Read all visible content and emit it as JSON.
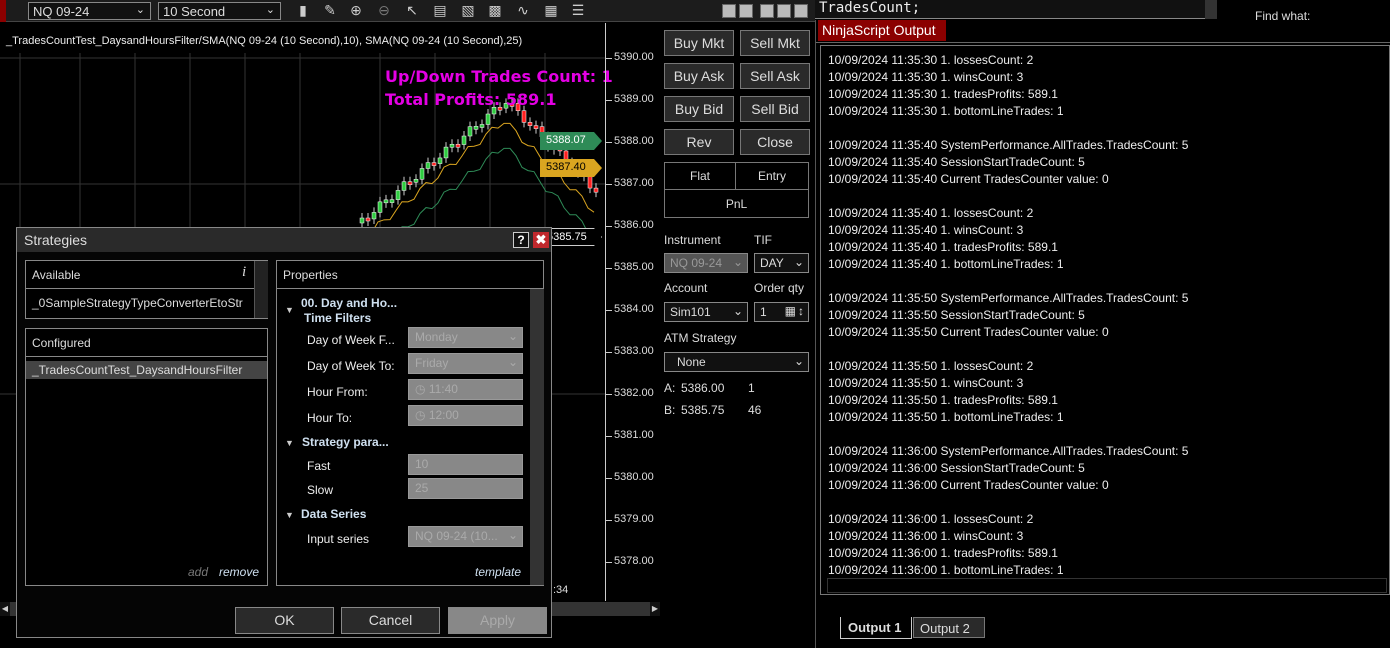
{
  "toolbar": {
    "instrument": "NQ 09-24",
    "interval": "10 Second",
    "icons": [
      "bars-type-icon",
      "pencil-icon",
      "zoom-in-icon",
      "zoom-out-icon",
      "pointer-icon",
      "data-box-icon",
      "properties-icon",
      "indicators-icon",
      "strategies-icon",
      "templates-icon",
      "menu-list-icon"
    ]
  },
  "chart": {
    "title": "_TradesCountTest_DaysandHoursFilter/SMA(NQ 09-24 (10 Second),10), SMA(NQ 09-24 (10 Second),25)",
    "overlay_line1": "Up/Down Trades Count: 1",
    "overlay_line2": "Total Profits: 589.1",
    "price_labels": [
      "5390.00",
      "5389.00",
      "5388.00",
      "5387.00",
      "5386.00",
      "5385.00",
      "5384.00",
      "5383.00",
      "5382.00",
      "5381.00",
      "5380.00",
      "5379.00",
      "5378.00"
    ],
    "sma_slow_tag": "5388.07",
    "sma_fast_tag": "5387.40",
    "last_price_tag": "5385.75",
    "time_label": ":34",
    "colors": {
      "overlay": "#e400e4",
      "sma_slow": "#2e8b57",
      "sma_fast": "#daa520",
      "up": "#2ecc40",
      "down": "#ff2020"
    }
  },
  "order": {
    "buy_mkt": "Buy Mkt",
    "sell_mkt": "Sell Mkt",
    "buy_ask": "Buy Ask",
    "sell_ask": "Sell Ask",
    "buy_bid": "Buy Bid",
    "sell_bid": "Sell Bid",
    "rev": "Rev",
    "close": "Close",
    "flat": "Flat",
    "entry": "Entry",
    "pnl": "PnL",
    "instrument_label": "Instrument",
    "instrument": "NQ 09-24",
    "tif_label": "TIF",
    "tif": "DAY",
    "account_label": "Account",
    "account": "Sim101",
    "qty_label": "Order qty",
    "qty": "1",
    "atm_label": "ATM Strategy",
    "atm": "None",
    "ask_label": "A:",
    "ask_price": "5386.00",
    "ask_size": "1",
    "bid_label": "B:",
    "bid_price": "5385.75",
    "bid_size": "46"
  },
  "dialog": {
    "title": "Strategies",
    "help": "?",
    "available": "Available",
    "available_item": "_0SampleStrategyTypeConverterEtoStr",
    "configured": "Configured",
    "configured_item": "_TradesCountTest_DaysandHoursFilter",
    "add": "add",
    "remove": "remove",
    "properties": "Properties",
    "template": "template",
    "cat1": "00. Day and Ho...",
    "cat1_sub": "Time Filters",
    "dow_from_label": "Day of Week F...",
    "dow_from": "Monday",
    "dow_to_label": "Day of Week To:",
    "dow_to": "Friday",
    "hour_from_label": "Hour From:",
    "hour_from": "11:40",
    "hour_to_label": "Hour To:",
    "hour_to": "12:00",
    "cat2": "Strategy para...",
    "fast_label": "Fast",
    "fast": "10",
    "slow_label": "Slow",
    "slow": "25",
    "cat3": "Data Series",
    "input_label": "Input series",
    "input": "NQ 09-24 (10...",
    "ok": "OK",
    "cancel": "Cancel",
    "apply": "Apply"
  },
  "editor": {
    "code": "TradesCount;",
    "find_label": "Find what:"
  },
  "output": {
    "title": "NinjaScript Output",
    "tabs": [
      "Output 1",
      "Output 2"
    ],
    "lines": [
      "10/09/2024 11:35:30 1. lossesCount: 2",
      "10/09/2024 11:35:30 1. winsCount: 3",
      "10/09/2024 11:35:30 1. tradesProfits: 589.1",
      "10/09/2024 11:35:30 1. bottomLineTrades: 1",
      "",
      "10/09/2024 11:35:40 SystemPerformance.AllTrades.TradesCount: 5",
      "10/09/2024 11:35:40 SessionStartTradeCount: 5",
      "10/09/2024 11:35:40 Current TradesCounter value: 0",
      "",
      "10/09/2024 11:35:40 1. lossesCount: 2",
      "10/09/2024 11:35:40 1. winsCount: 3",
      "10/09/2024 11:35:40 1. tradesProfits: 589.1",
      "10/09/2024 11:35:40 1. bottomLineTrades: 1",
      "",
      "10/09/2024 11:35:50 SystemPerformance.AllTrades.TradesCount: 5",
      "10/09/2024 11:35:50 SessionStartTradeCount: 5",
      "10/09/2024 11:35:50 Current TradesCounter value: 0",
      "",
      "10/09/2024 11:35:50 1. lossesCount: 2",
      "10/09/2024 11:35:50 1. winsCount: 3",
      "10/09/2024 11:35:50 1. tradesProfits: 589.1",
      "10/09/2024 11:35:50 1. bottomLineTrades: 1",
      "",
      "10/09/2024 11:36:00 SystemPerformance.AllTrades.TradesCount: 5",
      "10/09/2024 11:36:00 SessionStartTradeCount: 5",
      "10/09/2024 11:36:00 Current TradesCounter value: 0",
      "",
      "10/09/2024 11:36:00 1. lossesCount: 2",
      "10/09/2024 11:36:00 1. winsCount: 3",
      "10/09/2024 11:36:00 1. tradesProfits: 589.1",
      "10/09/2024 11:36:00 1. bottomLineTrades: 1"
    ]
  }
}
